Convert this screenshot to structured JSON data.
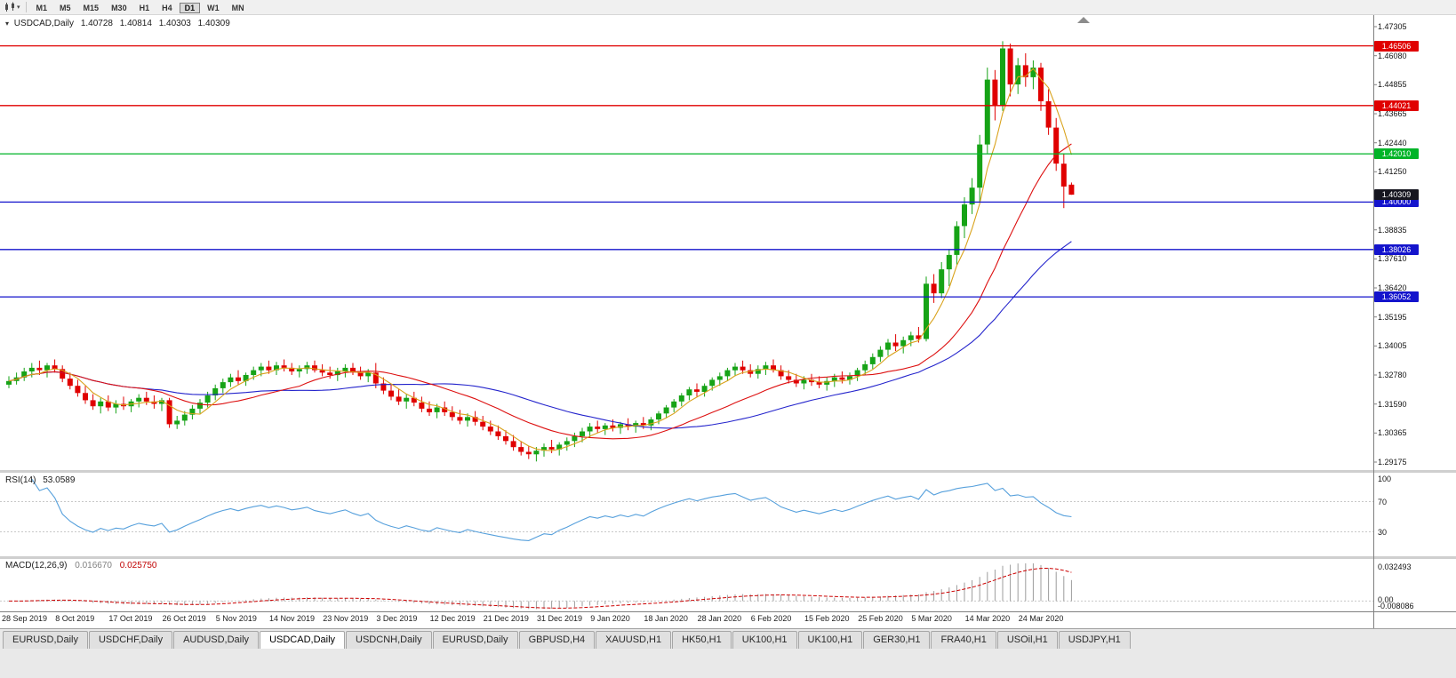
{
  "toolbar": {
    "timeframes": [
      "M1",
      "M5",
      "M15",
      "M30",
      "H1",
      "H4",
      "D1",
      "W1",
      "MN"
    ],
    "active_timeframe": "D1"
  },
  "main_chart": {
    "header": {
      "symbol": "USDCAD,Daily",
      "open": "1.40728",
      "high": "1.40814",
      "low": "1.40303",
      "close": "1.40309"
    },
    "axis_ticks": [
      "1.47305",
      "1.46080",
      "1.44855",
      "1.43665",
      "1.42440",
      "1.41250",
      "1.40025",
      "1.38835",
      "1.37610",
      "1.36420",
      "1.35195",
      "1.34005",
      "1.32780",
      "1.31590",
      "1.30365",
      "1.29175"
    ],
    "hlines": [
      {
        "price": 1.46506,
        "label": "1.46506",
        "color": "#E00000"
      },
      {
        "price": 1.44021,
        "label": "1.44021",
        "color": "#E00000"
      },
      {
        "price": 1.4201,
        "label": "1.42010",
        "color": "#00B428"
      },
      {
        "price": 1.4,
        "label": "1.40000",
        "color": "#1414CC"
      },
      {
        "price": 1.38026,
        "label": "1.38026",
        "color": "#1414CC"
      },
      {
        "price": 1.36052,
        "label": "1.36052",
        "color": "#1414CC"
      }
    ],
    "bid_badge": {
      "price": 1.40309,
      "label": "1.40309",
      "color": "#15151F"
    }
  },
  "rsi": {
    "label": "RSI(14)",
    "value": "53.0589",
    "ticks": [
      "100",
      "70",
      "30"
    ],
    "levels": [
      70,
      30
    ],
    "line_color": "#56A0DC"
  },
  "macd": {
    "label": "MACD(12,26,9)",
    "main_value": "0.016670",
    "signal_value": "0.025750",
    "ticks": [
      "0.032493",
      "0.00",
      "-0.008086"
    ],
    "histogram_color": "#9C9C9C",
    "signal_color": "#CC0000"
  },
  "tabs": {
    "active_index": 3,
    "items": [
      "EURUSD,Daily",
      "USDCHF,Daily",
      "AUDUSD,Daily",
      "USDCAD,Daily",
      "USDCNH,Daily",
      "EURUSD,Daily",
      "GBPUSD,H4",
      "XAUUSD,H1",
      "HK50,H1",
      "UK100,H1",
      "UK100,H1",
      "GER30,H1",
      "FRA40,H1",
      "USOil,H1",
      "USDJPY,H1"
    ]
  },
  "colors": {
    "bull": "#16A316",
    "bear": "#E00000",
    "ma_fast": "#D9A21B",
    "ma_mid": "#DD1010",
    "ma_slow": "#2424CC",
    "axis_line": "#808080",
    "separator": "#CFCFCF",
    "grid_dash": "#C8C8C8"
  },
  "chart_data": {
    "type": "candlestick",
    "title": "USDCAD Daily",
    "symbol": "USDCAD",
    "timeframe": "Daily",
    "ylim": [
      1.29175,
      1.47305
    ],
    "x_labels": [
      "28 Sep 2019",
      "8 Oct 2019",
      "17 Oct 2019",
      "26 Oct 2019",
      "5 Nov 2019",
      "14 Nov 2019",
      "23 Nov 2019",
      "3 Dec 2019",
      "12 Dec 2019",
      "21 Dec 2019",
      "31 Dec 2019",
      "9 Jan 2020",
      "18 Jan 2020",
      "28 Jan 2020",
      "6 Feb 2020",
      "15 Feb 2020",
      "25 Feb 2020",
      "5 Mar 2020",
      "14 Mar 2020",
      "24 Mar 2020"
    ],
    "candles_per_label": 7,
    "candles": [
      [
        1.324,
        1.3275,
        1.3225,
        1.3255
      ],
      [
        1.3255,
        1.329,
        1.324,
        1.327
      ],
      [
        1.327,
        1.331,
        1.3255,
        1.3295
      ],
      [
        1.3295,
        1.333,
        1.327,
        1.331
      ],
      [
        1.331,
        1.334,
        1.328,
        1.33
      ],
      [
        1.33,
        1.333,
        1.327,
        1.332
      ],
      [
        1.332,
        1.3345,
        1.329,
        1.3305
      ],
      [
        1.3305,
        1.332,
        1.325,
        1.3265
      ],
      [
        1.3265,
        1.329,
        1.322,
        1.3235
      ],
      [
        1.3235,
        1.326,
        1.319,
        1.3205
      ],
      [
        1.3205,
        1.3235,
        1.316,
        1.3175
      ],
      [
        1.3175,
        1.32,
        1.3135,
        1.315
      ],
      [
        1.315,
        1.3185,
        1.312,
        1.317
      ],
      [
        1.317,
        1.3195,
        1.313,
        1.3145
      ],
      [
        1.3145,
        1.3175,
        1.312,
        1.316
      ],
      [
        1.316,
        1.319,
        1.3135,
        1.315
      ],
      [
        1.315,
        1.318,
        1.3125,
        1.317
      ],
      [
        1.317,
        1.32,
        1.3145,
        1.3185
      ],
      [
        1.3185,
        1.321,
        1.3155,
        1.317
      ],
      [
        1.317,
        1.3195,
        1.314,
        1.316
      ],
      [
        1.316,
        1.3185,
        1.313,
        1.3175
      ],
      [
        1.3175,
        1.3185,
        1.306,
        1.3075
      ],
      [
        1.3075,
        1.311,
        1.3055,
        1.309
      ],
      [
        1.309,
        1.313,
        1.307,
        1.3115
      ],
      [
        1.3115,
        1.3155,
        1.3095,
        1.314
      ],
      [
        1.314,
        1.318,
        1.312,
        1.3165
      ],
      [
        1.3165,
        1.321,
        1.3145,
        1.3195
      ],
      [
        1.3195,
        1.324,
        1.3175,
        1.3225
      ],
      [
        1.3225,
        1.3265,
        1.3205,
        1.325
      ],
      [
        1.325,
        1.3285,
        1.323,
        1.327
      ],
      [
        1.327,
        1.33,
        1.324,
        1.3255
      ],
      [
        1.3255,
        1.329,
        1.3235,
        1.328
      ],
      [
        1.328,
        1.3315,
        1.326,
        1.33
      ],
      [
        1.33,
        1.333,
        1.3275,
        1.3315
      ],
      [
        1.3315,
        1.334,
        1.3285,
        1.33
      ],
      [
        1.33,
        1.3335,
        1.328,
        1.332
      ],
      [
        1.332,
        1.3345,
        1.3295,
        1.331
      ],
      [
        1.331,
        1.333,
        1.328,
        1.3295
      ],
      [
        1.3295,
        1.332,
        1.327,
        1.3305
      ],
      [
        1.3305,
        1.3335,
        1.3285,
        1.332
      ],
      [
        1.332,
        1.334,
        1.329,
        1.33
      ],
      [
        1.33,
        1.3325,
        1.3275,
        1.329
      ],
      [
        1.329,
        1.3315,
        1.3265,
        1.328
      ],
      [
        1.328,
        1.331,
        1.3255,
        1.3295
      ],
      [
        1.3295,
        1.3325,
        1.327,
        1.331
      ],
      [
        1.331,
        1.333,
        1.328,
        1.329
      ],
      [
        1.329,
        1.3315,
        1.326,
        1.3275
      ],
      [
        1.3275,
        1.3305,
        1.325,
        1.329
      ],
      [
        1.329,
        1.333,
        1.3225,
        1.3245
      ],
      [
        1.3245,
        1.327,
        1.32,
        1.3215
      ],
      [
        1.3215,
        1.3245,
        1.3175,
        1.319
      ],
      [
        1.319,
        1.322,
        1.3155,
        1.317
      ],
      [
        1.317,
        1.32,
        1.314,
        1.3185
      ],
      [
        1.3185,
        1.321,
        1.315,
        1.3165
      ],
      [
        1.3165,
        1.319,
        1.3125,
        1.314
      ],
      [
        1.314,
        1.317,
        1.311,
        1.3125
      ],
      [
        1.3125,
        1.316,
        1.31,
        1.3145
      ],
      [
        1.3145,
        1.317,
        1.311,
        1.3125
      ],
      [
        1.3125,
        1.315,
        1.309,
        1.3105
      ],
      [
        1.3105,
        1.3135,
        1.3075,
        1.309
      ],
      [
        1.309,
        1.312,
        1.3065,
        1.3105
      ],
      [
        1.3105,
        1.313,
        1.307,
        1.3085
      ],
      [
        1.3085,
        1.311,
        1.305,
        1.3065
      ],
      [
        1.3065,
        1.309,
        1.303,
        1.3045
      ],
      [
        1.3045,
        1.307,
        1.301,
        1.3025
      ],
      [
        1.3025,
        1.305,
        1.299,
        1.3005
      ],
      [
        1.3005,
        1.303,
        1.2965,
        1.298
      ],
      [
        1.298,
        1.3005,
        1.2945,
        1.296
      ],
      [
        1.296,
        1.2985,
        1.293,
        1.295
      ],
      [
        1.295,
        1.298,
        1.292,
        1.2965
      ],
      [
        1.2965,
        1.2995,
        1.294,
        1.298
      ],
      [
        1.298,
        1.301,
        1.2955,
        1.297
      ],
      [
        1.297,
        1.3,
        1.2945,
        1.299
      ],
      [
        1.299,
        1.302,
        1.2965,
        1.3005
      ],
      [
        1.3005,
        1.304,
        1.298,
        1.3025
      ],
      [
        1.3025,
        1.306,
        1.3,
        1.3045
      ],
      [
        1.3045,
        1.308,
        1.302,
        1.3065
      ],
      [
        1.3065,
        1.309,
        1.304,
        1.3055
      ],
      [
        1.3055,
        1.308,
        1.303,
        1.307
      ],
      [
        1.307,
        1.3095,
        1.3045,
        1.306
      ],
      [
        1.306,
        1.3085,
        1.3035,
        1.3075
      ],
      [
        1.3075,
        1.31,
        1.305,
        1.3065
      ],
      [
        1.3065,
        1.309,
        1.304,
        1.308
      ],
      [
        1.308,
        1.3105,
        1.3055,
        1.307
      ],
      [
        1.307,
        1.3105,
        1.305,
        1.3095
      ],
      [
        1.3095,
        1.313,
        1.3075,
        1.312
      ],
      [
        1.312,
        1.3155,
        1.31,
        1.3145
      ],
      [
        1.3145,
        1.318,
        1.3125,
        1.317
      ],
      [
        1.317,
        1.3205,
        1.315,
        1.3195
      ],
      [
        1.3195,
        1.323,
        1.3175,
        1.322
      ],
      [
        1.322,
        1.3245,
        1.319,
        1.321
      ],
      [
        1.321,
        1.3245,
        1.319,
        1.3235
      ],
      [
        1.3235,
        1.327,
        1.3215,
        1.326
      ],
      [
        1.326,
        1.329,
        1.3235,
        1.3275
      ],
      [
        1.3275,
        1.331,
        1.3255,
        1.33
      ],
      [
        1.33,
        1.333,
        1.3275,
        1.3315
      ],
      [
        1.3315,
        1.334,
        1.3285,
        1.33
      ],
      [
        1.33,
        1.3325,
        1.327,
        1.3285
      ],
      [
        1.3285,
        1.332,
        1.3265,
        1.3305
      ],
      [
        1.3305,
        1.3335,
        1.328,
        1.332
      ],
      [
        1.332,
        1.3345,
        1.329,
        1.33
      ],
      [
        1.33,
        1.332,
        1.326,
        1.3275
      ],
      [
        1.3275,
        1.33,
        1.3245,
        1.326
      ],
      [
        1.326,
        1.3285,
        1.323,
        1.3245
      ],
      [
        1.3245,
        1.3275,
        1.322,
        1.326
      ],
      [
        1.326,
        1.3285,
        1.3235,
        1.325
      ],
      [
        1.325,
        1.3275,
        1.3225,
        1.324
      ],
      [
        1.324,
        1.327,
        1.3215,
        1.3255
      ],
      [
        1.3255,
        1.3285,
        1.323,
        1.327
      ],
      [
        1.327,
        1.3295,
        1.3245,
        1.326
      ],
      [
        1.326,
        1.329,
        1.324,
        1.3275
      ],
      [
        1.3275,
        1.331,
        1.3255,
        1.33
      ],
      [
        1.33,
        1.334,
        1.328,
        1.3325
      ],
      [
        1.3325,
        1.337,
        1.3305,
        1.3355
      ],
      [
        1.3355,
        1.34,
        1.3335,
        1.3385
      ],
      [
        1.3385,
        1.343,
        1.336,
        1.3415
      ],
      [
        1.3415,
        1.345,
        1.338,
        1.34
      ],
      [
        1.34,
        1.344,
        1.337,
        1.3425
      ],
      [
        1.3425,
        1.346,
        1.34,
        1.3445
      ],
      [
        1.3445,
        1.348,
        1.3415,
        1.343
      ],
      [
        1.343,
        1.369,
        1.342,
        1.366
      ],
      [
        1.366,
        1.37,
        1.358,
        1.362
      ],
      [
        1.362,
        1.375,
        1.36,
        1.372
      ],
      [
        1.372,
        1.38,
        1.365,
        1.378
      ],
      [
        1.378,
        1.392,
        1.374,
        1.39
      ],
      [
        1.39,
        1.402,
        1.385,
        1.399
      ],
      [
        1.399,
        1.41,
        1.395,
        1.406
      ],
      [
        1.406,
        1.428,
        1.4,
        1.424
      ],
      [
        1.424,
        1.456,
        1.42,
        1.451
      ],
      [
        1.451,
        1.455,
        1.434,
        1.44
      ],
      [
        1.44,
        1.467,
        1.438,
        1.464
      ],
      [
        1.464,
        1.466,
        1.444,
        1.449
      ],
      [
        1.449,
        1.46,
        1.445,
        1.457
      ],
      [
        1.457,
        1.462,
        1.448,
        1.452
      ],
      [
        1.452,
        1.459,
        1.447,
        1.456
      ],
      [
        1.456,
        1.458,
        1.438,
        1.442
      ],
      [
        1.442,
        1.447,
        1.428,
        1.431
      ],
      [
        1.431,
        1.435,
        1.413,
        1.416
      ],
      [
        1.416,
        1.42,
        1.3975,
        1.4065
      ],
      [
        1.40728,
        1.40814,
        1.40303,
        1.40309
      ]
    ]
  }
}
